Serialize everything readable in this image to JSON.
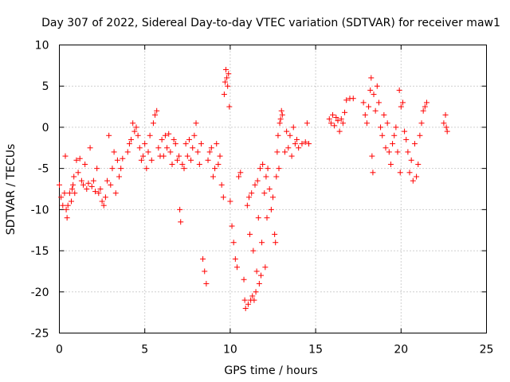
{
  "chart_data": {
    "type": "scatter",
    "title": "Day 307 of 2022, Sidereal Day-to-day VTEC variation (SDTVAR) for receiver maw1",
    "xlabel": "GPS time / hours",
    "ylabel": "SDTVAR / TECUs",
    "xlim": [
      0,
      25
    ],
    "ylim": [
      -25,
      10
    ],
    "xticks": [
      0,
      5,
      10,
      15,
      20,
      25
    ],
    "yticks": [
      -25,
      -20,
      -15,
      -10,
      -5,
      0,
      5,
      10
    ],
    "grid": true,
    "marker": "+",
    "color": "#ff0000",
    "series": [
      {
        "name": "maw1",
        "points": [
          [
            0.0,
            -7.0
          ],
          [
            0.1,
            -8.5
          ],
          [
            0.2,
            -9.5
          ],
          [
            0.3,
            -8.0
          ],
          [
            0.35,
            -3.5
          ],
          [
            0.4,
            -10.0
          ],
          [
            0.45,
            -11.0
          ],
          [
            0.5,
            -9.5
          ],
          [
            0.6,
            -8.0
          ],
          [
            0.7,
            -9.0
          ],
          [
            0.75,
            -7.5
          ],
          [
            0.8,
            -7.0
          ],
          [
            0.85,
            -6.0
          ],
          [
            0.9,
            -8.0
          ],
          [
            1.0,
            -4.0
          ],
          [
            1.1,
            -5.5
          ],
          [
            1.2,
            -3.8
          ],
          [
            1.3,
            -6.5
          ],
          [
            1.4,
            -7.0
          ],
          [
            1.5,
            -4.5
          ],
          [
            1.6,
            -7.5
          ],
          [
            1.7,
            -6.8
          ],
          [
            1.8,
            -2.5
          ],
          [
            1.9,
            -7.2
          ],
          [
            2.0,
            -6.5
          ],
          [
            2.1,
            -7.8
          ],
          [
            2.2,
            -5.0
          ],
          [
            2.3,
            -8.0
          ],
          [
            2.4,
            -7.5
          ],
          [
            2.5,
            -9.0
          ],
          [
            2.6,
            -9.5
          ],
          [
            2.7,
            -8.5
          ],
          [
            2.8,
            -6.5
          ],
          [
            2.9,
            -1.0
          ],
          [
            3.0,
            -7.0
          ],
          [
            3.1,
            -5.0
          ],
          [
            3.2,
            -3.0
          ],
          [
            3.3,
            -8.0
          ],
          [
            3.4,
            -4.0
          ],
          [
            3.5,
            -6.0
          ],
          [
            3.6,
            -5.0
          ],
          [
            3.7,
            -3.8
          ],
          [
            4.0,
            -3.0
          ],
          [
            4.1,
            -2.0
          ],
          [
            4.2,
            -1.5
          ],
          [
            4.3,
            0.5
          ],
          [
            4.4,
            -0.5
          ],
          [
            4.5,
            0.0
          ],
          [
            4.6,
            -1.0
          ],
          [
            4.7,
            -2.5
          ],
          [
            4.8,
            -4.0
          ],
          [
            4.9,
            -3.5
          ],
          [
            5.0,
            -2.0
          ],
          [
            5.1,
            -5.0
          ],
          [
            5.2,
            -3.0
          ],
          [
            5.3,
            -1.0
          ],
          [
            5.4,
            -4.0
          ],
          [
            5.5,
            0.5
          ],
          [
            5.6,
            1.5
          ],
          [
            5.7,
            2.0
          ],
          [
            5.8,
            -2.5
          ],
          [
            5.9,
            -3.5
          ],
          [
            6.0,
            -1.5
          ],
          [
            6.1,
            -3.5
          ],
          [
            6.2,
            -1.0
          ],
          [
            6.3,
            -2.5
          ],
          [
            6.4,
            -0.8
          ],
          [
            6.5,
            -3.0
          ],
          [
            6.6,
            -4.5
          ],
          [
            6.7,
            -1.5
          ],
          [
            6.8,
            -2.0
          ],
          [
            6.9,
            -4.0
          ],
          [
            7.0,
            -3.5
          ],
          [
            7.05,
            -10.0
          ],
          [
            7.1,
            -11.5
          ],
          [
            7.2,
            -4.5
          ],
          [
            7.3,
            -5.0
          ],
          [
            7.4,
            -2.0
          ],
          [
            7.5,
            -3.5
          ],
          [
            7.6,
            -1.5
          ],
          [
            7.7,
            -4.0
          ],
          [
            7.8,
            -2.5
          ],
          [
            7.9,
            -1.0
          ],
          [
            8.0,
            0.5
          ],
          [
            8.1,
            -3.0
          ],
          [
            8.2,
            -4.5
          ],
          [
            8.3,
            -2.0
          ],
          [
            8.4,
            -16.0
          ],
          [
            8.5,
            -17.5
          ],
          [
            8.6,
            -19.0
          ],
          [
            8.7,
            -4.0
          ],
          [
            8.8,
            -3.0
          ],
          [
            8.9,
            -2.5
          ],
          [
            9.0,
            -6.0
          ],
          [
            9.1,
            -5.0
          ],
          [
            9.2,
            -2.0
          ],
          [
            9.3,
            -4.5
          ],
          [
            9.4,
            -3.5
          ],
          [
            9.5,
            -7.0
          ],
          [
            9.6,
            -8.5
          ],
          [
            9.65,
            4.0
          ],
          [
            9.7,
            5.5
          ],
          [
            9.75,
            7.0
          ],
          [
            9.8,
            6.0
          ],
          [
            9.85,
            5.0
          ],
          [
            9.9,
            6.5
          ],
          [
            9.95,
            2.5
          ],
          [
            10.0,
            -9.0
          ],
          [
            10.1,
            -12.0
          ],
          [
            10.2,
            -14.0
          ],
          [
            10.3,
            -16.0
          ],
          [
            10.4,
            -17.0
          ],
          [
            10.5,
            -6.0
          ],
          [
            10.6,
            -5.5
          ],
          [
            10.8,
            -18.5
          ],
          [
            10.85,
            -21.0
          ],
          [
            10.9,
            -22.0
          ],
          [
            11.0,
            -9.5
          ],
          [
            11.05,
            -21.5
          ],
          [
            11.1,
            -8.5
          ],
          [
            11.15,
            -13.0
          ],
          [
            11.2,
            -21.0
          ],
          [
            11.25,
            -8.0
          ],
          [
            11.3,
            -20.5
          ],
          [
            11.35,
            -15.0
          ],
          [
            11.4,
            -21.0
          ],
          [
            11.45,
            -7.0
          ],
          [
            11.5,
            -20.0
          ],
          [
            11.55,
            -17.5
          ],
          [
            11.6,
            -6.5
          ],
          [
            11.65,
            -11.0
          ],
          [
            11.7,
            -19.0
          ],
          [
            11.75,
            -5.0
          ],
          [
            11.8,
            -18.0
          ],
          [
            11.85,
            -14.0
          ],
          [
            11.9,
            -4.5
          ],
          [
            12.0,
            -8.0
          ],
          [
            12.05,
            -17.0
          ],
          [
            12.1,
            -6.0
          ],
          [
            12.15,
            -11.0
          ],
          [
            12.2,
            -5.0
          ],
          [
            12.3,
            -7.5
          ],
          [
            12.4,
            -10.0
          ],
          [
            12.5,
            -8.5
          ],
          [
            12.6,
            -13.0
          ],
          [
            12.65,
            -14.0
          ],
          [
            12.7,
            -6.0
          ],
          [
            12.75,
            -3.0
          ],
          [
            12.8,
            -1.0
          ],
          [
            12.85,
            -5.0
          ],
          [
            12.9,
            0.5
          ],
          [
            12.95,
            1.0
          ],
          [
            13.0,
            2.0
          ],
          [
            13.05,
            1.5
          ],
          [
            13.2,
            -3.0
          ],
          [
            13.3,
            -0.5
          ],
          [
            13.4,
            -2.5
          ],
          [
            13.5,
            -1.0
          ],
          [
            13.6,
            -3.5
          ],
          [
            13.7,
            0.0
          ],
          [
            13.8,
            -2.0
          ],
          [
            13.9,
            -1.5
          ],
          [
            14.0,
            -2.5
          ],
          [
            14.2,
            -2.0
          ],
          [
            14.4,
            -1.8
          ],
          [
            14.5,
            0.5
          ],
          [
            14.6,
            -2.0
          ],
          [
            15.8,
            1.0
          ],
          [
            15.9,
            0.5
          ],
          [
            16.0,
            1.5
          ],
          [
            16.1,
            0.2
          ],
          [
            16.2,
            1.2
          ],
          [
            16.3,
            0.8
          ],
          [
            16.4,
            -0.5
          ],
          [
            16.5,
            1.0
          ],
          [
            16.6,
            0.5
          ],
          [
            16.7,
            1.8
          ],
          [
            16.8,
            3.3
          ],
          [
            17.0,
            3.5
          ],
          [
            17.2,
            3.5
          ],
          [
            17.8,
            3.0
          ],
          [
            17.9,
            1.5
          ],
          [
            18.0,
            0.5
          ],
          [
            18.1,
            2.5
          ],
          [
            18.2,
            4.5
          ],
          [
            18.25,
            6.0
          ],
          [
            18.3,
            -3.5
          ],
          [
            18.35,
            -5.5
          ],
          [
            18.4,
            4.0
          ],
          [
            18.5,
            2.0
          ],
          [
            18.6,
            5.0
          ],
          [
            18.7,
            3.0
          ],
          [
            18.8,
            0.0
          ],
          [
            18.9,
            -1.0
          ],
          [
            19.0,
            1.5
          ],
          [
            19.1,
            -2.5
          ],
          [
            19.2,
            0.5
          ],
          [
            19.3,
            -3.0
          ],
          [
            19.4,
            -4.5
          ],
          [
            19.5,
            -2.0
          ],
          [
            19.6,
            -1.0
          ],
          [
            19.7,
            0.0
          ],
          [
            19.8,
            -3.0
          ],
          [
            19.9,
            4.5
          ],
          [
            19.95,
            -5.5
          ],
          [
            20.0,
            2.5
          ],
          [
            20.1,
            3.0
          ],
          [
            20.2,
            -0.5
          ],
          [
            20.3,
            -1.5
          ],
          [
            20.4,
            -3.0
          ],
          [
            20.5,
            -5.5
          ],
          [
            20.6,
            -4.0
          ],
          [
            20.7,
            -6.5
          ],
          [
            20.8,
            -2.0
          ],
          [
            20.9,
            -6.0
          ],
          [
            21.0,
            -4.5
          ],
          [
            21.1,
            -1.0
          ],
          [
            21.2,
            0.5
          ],
          [
            21.3,
            2.0
          ],
          [
            21.4,
            2.5
          ],
          [
            21.5,
            3.0
          ],
          [
            22.5,
            0.5
          ],
          [
            22.6,
            1.5
          ],
          [
            22.65,
            0.0
          ],
          [
            22.7,
            -0.5
          ]
        ]
      }
    ]
  }
}
